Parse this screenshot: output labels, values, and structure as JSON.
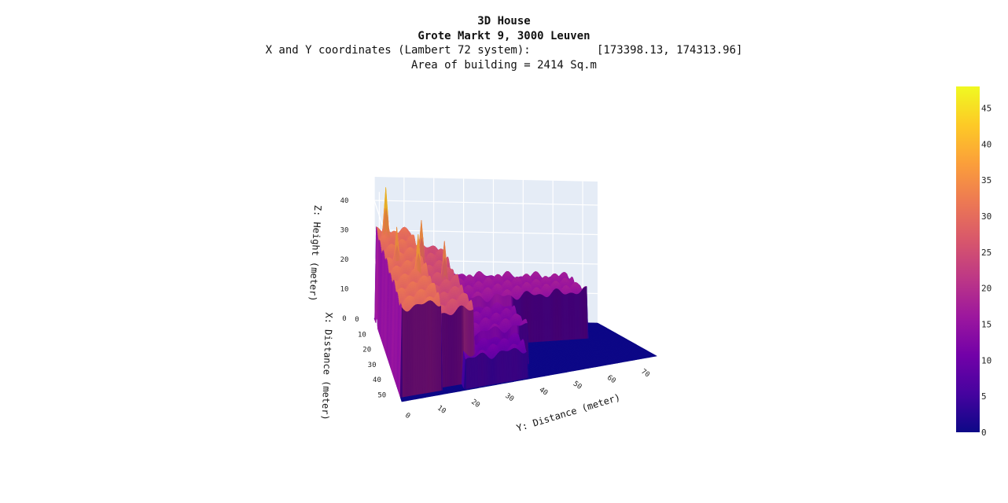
{
  "header": {
    "title": "3D House",
    "address": "Grote Markt 9, 3000 Leuven",
    "coordinates": "X and Y coordinates (Lambert 72 system):          [173398.13, 174313.96]",
    "area": "Area of building = 2414 Sq.m"
  },
  "chart_data": {
    "type": "surface",
    "colorscale": "plasma",
    "colors": [
      "#0d0887",
      "#46039f",
      "#7201a8",
      "#9c179e",
      "#bd3786",
      "#d8576b",
      "#ed7953",
      "#fb9f3a",
      "#fdca26",
      "#f0f921"
    ],
    "axes": {
      "x": {
        "title": "X: Distance (meter)",
        "ticks": [
          0,
          10,
          20,
          30,
          40,
          50
        ],
        "range": [
          0,
          55
        ]
      },
      "y": {
        "title": "Y: Distance (meter)",
        "ticks": [
          0,
          10,
          20,
          30,
          40,
          50,
          60,
          70
        ],
        "range": [
          0,
          75
        ]
      },
      "z": {
        "title": "Z: Height (meter)",
        "ticks": [
          0,
          10,
          20,
          30,
          40
        ],
        "range": [
          0,
          48
        ]
      }
    },
    "colorbar": {
      "ticks": [
        0,
        5,
        10,
        15,
        20,
        25,
        30,
        35,
        40,
        45
      ],
      "range": [
        0,
        48
      ]
    },
    "building_blocks": [
      {
        "x": [
          1,
          52
        ],
        "y": [
          0.5,
          12
        ],
        "height": 30
      },
      {
        "x": [
          2,
          50
        ],
        "y": [
          12,
          22
        ],
        "height": 25
      },
      {
        "x": [
          2,
          22
        ],
        "y": [
          22,
          64
        ],
        "height": 16
      },
      {
        "x": [
          22,
          42
        ],
        "y": [
          22,
          40
        ],
        "height": 13
      },
      {
        "x": [
          38,
          54
        ],
        "y": [
          19,
          37
        ],
        "height": 10
      }
    ],
    "spires": [
      {
        "x": 5,
        "y": 3,
        "height": 47
      },
      {
        "x": 20,
        "y": 4,
        "height": 41
      },
      {
        "x": 30,
        "y": 9,
        "height": 43
      },
      {
        "x": 14,
        "y": 13,
        "height": 40
      },
      {
        "x": 26,
        "y": 18,
        "height": 38
      }
    ]
  }
}
